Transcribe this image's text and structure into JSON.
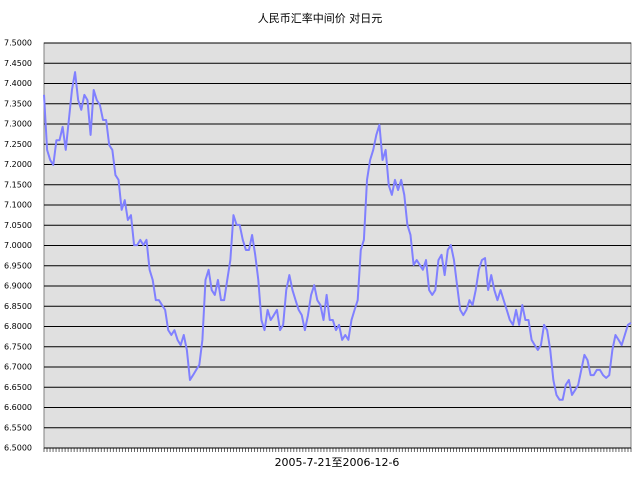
{
  "chart_data": {
    "type": "line",
    "title": "人民币汇率中间价 对日元",
    "x_label": "2005-7-21至2006-12-6",
    "ylim": [
      6.5,
      7.5
    ],
    "yticks": [
      {
        "value": 6.5,
        "label": "6.5000"
      },
      {
        "value": 6.55,
        "label": "6.5500"
      },
      {
        "value": 6.6,
        "label": "6.6000"
      },
      {
        "value": 6.65,
        "label": "6.6500"
      },
      {
        "value": 6.7,
        "label": "6.7000"
      },
      {
        "value": 6.75,
        "label": "6.7500"
      },
      {
        "value": 6.8,
        "label": "6.8000"
      },
      {
        "value": 6.85,
        "label": "6.8500"
      },
      {
        "value": 6.9,
        "label": "6.9000"
      },
      {
        "value": 6.95,
        "label": "6.9500"
      },
      {
        "value": 7.0,
        "label": "7.0000"
      },
      {
        "value": 7.05,
        "label": "7.0500"
      },
      {
        "value": 7.1,
        "label": "7.1000"
      },
      {
        "value": 7.15,
        "label": "7.1500"
      },
      {
        "value": 7.2,
        "label": "7.2000"
      },
      {
        "value": 7.25,
        "label": "7.2500"
      },
      {
        "value": 7.3,
        "label": "7.3000"
      },
      {
        "value": 7.35,
        "label": "7.3500"
      },
      {
        "value": 7.4,
        "label": "7.4000"
      },
      {
        "value": 7.45,
        "label": "7.4500"
      },
      {
        "value": 7.5,
        "label": "7.5000"
      }
    ],
    "grid": true,
    "color": "#8080ff",
    "values": [
      7.372,
      7.236,
      7.211,
      7.199,
      7.26,
      7.26,
      7.293,
      7.236,
      7.31,
      7.384,
      7.428,
      7.359,
      7.335,
      7.372,
      7.359,
      7.273,
      7.384,
      7.359,
      7.347,
      7.31,
      7.31,
      7.248,
      7.236,
      7.174,
      7.162,
      7.088,
      7.112,
      7.063,
      7.075,
      7.001,
      7.001,
      7.014,
      7.001,
      7.014,
      6.94,
      6.915,
      6.865,
      6.865,
      6.853,
      6.841,
      6.791,
      6.779,
      6.791,
      6.767,
      6.754,
      6.779,
      6.742,
      6.668,
      6.68,
      6.693,
      6.705,
      6.767,
      6.915,
      6.94,
      6.89,
      6.878,
      6.915,
      6.865,
      6.865,
      6.915,
      6.964,
      7.075,
      7.051,
      7.051,
      7.014,
      6.989,
      6.989,
      7.026,
      6.977,
      6.915,
      6.816,
      6.791,
      6.841,
      6.816,
      6.828,
      6.841,
      6.791,
      6.804,
      6.89,
      6.927,
      6.89,
      6.865,
      6.841,
      6.828,
      6.791,
      6.828,
      6.878,
      6.902,
      6.865,
      6.853,
      6.816,
      6.878,
      6.816,
      6.816,
      6.791,
      6.804,
      6.767,
      6.779,
      6.767,
      6.816,
      6.841,
      6.865,
      6.989,
      7.014,
      7.162,
      7.211,
      7.236,
      7.273,
      7.298,
      7.211,
      7.236,
      7.149,
      7.125,
      7.162,
      7.137,
      7.162,
      7.125,
      7.051,
      7.026,
      6.952,
      6.964,
      6.952,
      6.94,
      6.964,
      6.89,
      6.878,
      6.89,
      6.964,
      6.977,
      6.927,
      6.989,
      7.001,
      6.964,
      6.902,
      6.841,
      6.828,
      6.841,
      6.865,
      6.853,
      6.89,
      6.94,
      6.964,
      6.969,
      6.89,
      6.927,
      6.89,
      6.865,
      6.89,
      6.865,
      6.841,
      6.816,
      6.804,
      6.841,
      6.804,
      6.853,
      6.816,
      6.816,
      6.767,
      6.754,
      6.742,
      6.754,
      6.804,
      6.791,
      6.742,
      6.668,
      6.631,
      6.619,
      6.619,
      6.656,
      6.668,
      6.631,
      6.643,
      6.656,
      6.693,
      6.73,
      6.717,
      6.68,
      6.68,
      6.693,
      6.693,
      6.68,
      6.673,
      6.68,
      6.742,
      6.779,
      6.767,
      6.754,
      6.779,
      6.804,
      6.809
    ]
  }
}
